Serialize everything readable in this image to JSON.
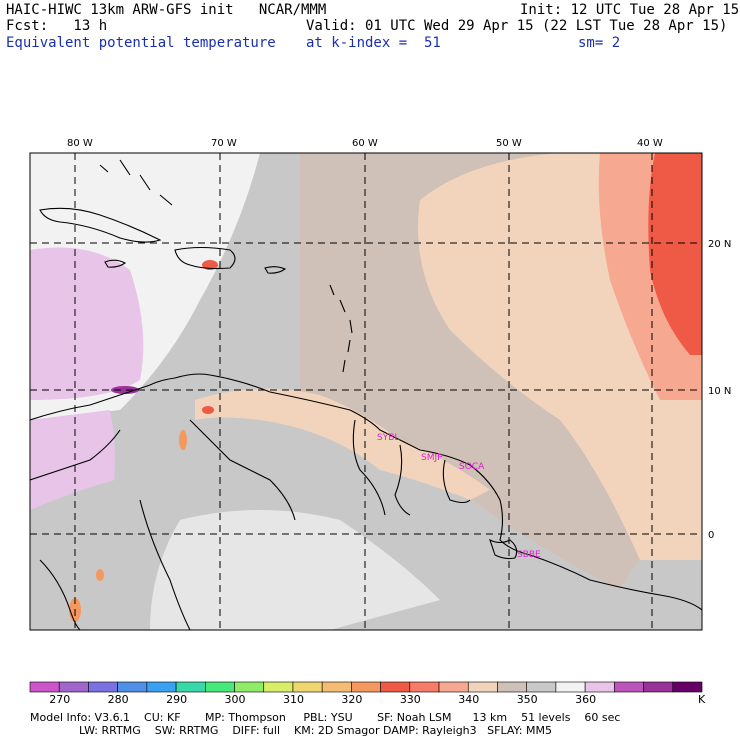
{
  "header": {
    "model_line": "HAIC-HIWC 13km ARW-GFS init   NCAR/MMM",
    "init_line": "Init: 12 UTC Tue 28 Apr 15",
    "fcst_line": "Fcst:   13 h",
    "valid_line": "Valid: 01 UTC Wed 29 Apr 15 (22 LST Tue 28 Apr 15)",
    "field_name": "Equivalent potential temperature",
    "level_line": "at k-index =  51",
    "smooth_line": "sm= 2"
  },
  "map": {
    "lon_labels": [
      "80 W",
      "70 W",
      "60 W",
      "50 W",
      "40 W"
    ],
    "lat_labels": [
      "20 N",
      "10 N",
      "0"
    ],
    "stations": [
      "SYBL",
      "SMJP",
      "SOCA",
      "SBBE"
    ]
  },
  "colorbar": {
    "colors": [
      "#cc55cc",
      "#a066cc",
      "#7a72e0",
      "#4f8fe6",
      "#3aa0f0",
      "#38d8a8",
      "#48e87a",
      "#90ec68",
      "#d8ee66",
      "#f0d670",
      "#f5bc74",
      "#f59860",
      "#ef5a46",
      "#f87a68",
      "#f7a890",
      "#f2d4bc",
      "#cfc0b8",
      "#c8c8c8",
      "#f2f2f2",
      "#e8c4e8",
      "#bb55bb",
      "#993399",
      "#660066"
    ],
    "labels": [
      "270",
      "280",
      "290",
      "300",
      "310",
      "320",
      "330",
      "340",
      "350",
      "360"
    ],
    "unit": "K"
  },
  "footer": {
    "line1": "Model Info: V3.6.1    CU: KF       MP: Thompson     PBL: YSU       SF: Noah LSM      13 km    51 levels    60 sec",
    "line2": "              LW: RRTMG    SW: RRTMG    DIFF: full    KM: 2D Smagor DAMP: Rayleigh3   SFLAY: MM5"
  },
  "colors": {
    "station": "#e020d0",
    "header_blue": "#1a2fb0"
  }
}
